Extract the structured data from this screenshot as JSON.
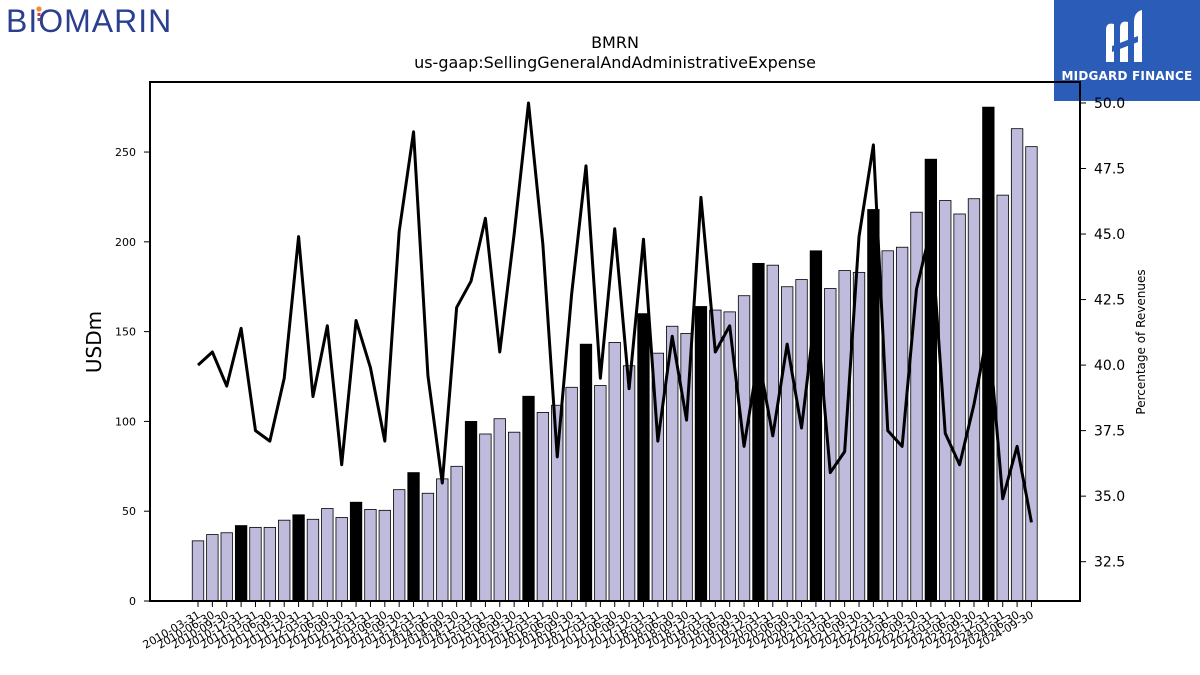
{
  "header": {
    "company_logo_text": "BIOMARIN",
    "brand_text": "MIDGARD FINANCE"
  },
  "colors": {
    "bar_default": "#bfbbdc",
    "bar_highlight": "#000000",
    "line": "#000000",
    "brand_blue": "#2b5cb8"
  },
  "chart_data": {
    "type": "bar",
    "title": "BMRN",
    "subtitle": "us-gaap:SellingGeneralAndAdministrativeExpense",
    "ylabel": "USDm",
    "y2label": "Percentage of Revenues",
    "ylim": [
      0,
      289
    ],
    "y2lim": [
      31,
      50.8
    ],
    "yticks": [
      0,
      50,
      100,
      150,
      200,
      250
    ],
    "y2ticks": [
      "32.5",
      "35.0",
      "37.5",
      "40.0",
      "42.5",
      "45.0",
      "47.5",
      "50.0"
    ],
    "categories": [
      "2010-03-31",
      "2010-06-30",
      "2010-09-30",
      "2010-12-31",
      "2011-03-31",
      "2011-06-30",
      "2011-09-30",
      "2011-12-31",
      "2012-03-31",
      "2012-06-30",
      "2012-09-30",
      "2012-12-31",
      "2013-03-31",
      "2013-06-30",
      "2013-09-30",
      "2013-12-31",
      "2014-03-31",
      "2014-06-30",
      "2014-09-30",
      "2014-12-31",
      "2015-03-31",
      "2015-06-30",
      "2015-09-30",
      "2015-12-31",
      "2016-03-31",
      "2016-06-30",
      "2016-09-30",
      "2016-12-31",
      "2017-03-31",
      "2017-06-30",
      "2017-09-30",
      "2017-12-31",
      "2018-03-31",
      "2018-06-30",
      "2018-09-30",
      "2018-12-31",
      "2019-03-31",
      "2019-06-30",
      "2019-09-30",
      "2019-12-31",
      "2020-03-31",
      "2020-06-30",
      "2020-09-30",
      "2020-12-31",
      "2021-03-31",
      "2021-06-30",
      "2021-09-30",
      "2021-12-31",
      "2022-03-31",
      "2022-06-30",
      "2022-09-30",
      "2022-12-31",
      "2023-03-31",
      "2023-06-30",
      "2023-09-30",
      "2023-12-31",
      "2024-03-31",
      "2024-06-30",
      "2024-09-30"
    ],
    "series": [
      {
        "kind": "bar",
        "axis": "left",
        "values": [
          33.5,
          37,
          38,
          42,
          41,
          41,
          45,
          48,
          45.5,
          51.5,
          46.5,
          55,
          51,
          50.5,
          62,
          71.5,
          60,
          68,
          75,
          100,
          93,
          101.5,
          94,
          114,
          105,
          109,
          119,
          143,
          120,
          144,
          131,
          160,
          138,
          153,
          149,
          164,
          162,
          161,
          170,
          188,
          187,
          175,
          179,
          195,
          174,
          184,
          183,
          218,
          195,
          197,
          216.5,
          246,
          223,
          215.5,
          224,
          275,
          226,
          263,
          253
        ],
        "highlight_every": 4,
        "highlight_offset": 3
      },
      {
        "kind": "line",
        "axis": "right",
        "values": [
          40,
          40.5,
          39.2,
          41.4,
          37.5,
          37.1,
          39.5,
          44.9,
          38.8,
          41.5,
          36.2,
          41.7,
          39.9,
          37.1,
          45.1,
          48.9,
          39.6,
          35.5,
          42.2,
          43.2,
          45.6,
          40.5,
          45,
          50,
          44.6,
          36.5,
          42.7,
          47.6,
          39.5,
          45.2,
          39.1,
          44.8,
          37.1,
          41.1,
          37.9,
          46.4,
          40.5,
          41.5,
          36.9,
          40.3,
          37.3,
          40.8,
          37.6,
          42.2,
          35.9,
          36.7,
          44.9,
          48.4,
          37.5,
          36.9,
          42.9,
          45.2,
          37.4,
          36.2,
          38.5,
          41.4,
          34.9,
          36.9,
          34
        ]
      }
    ]
  }
}
